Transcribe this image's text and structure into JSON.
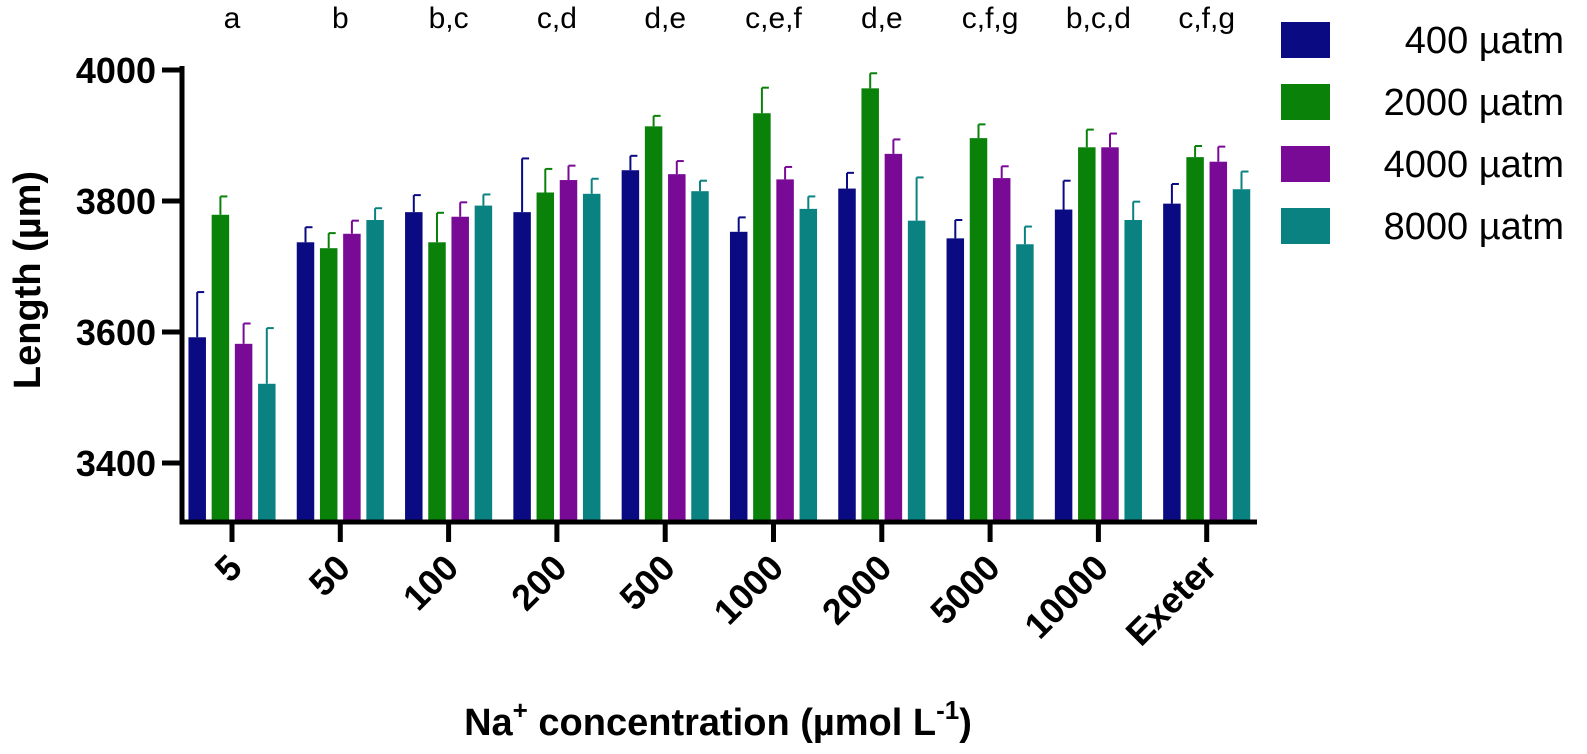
{
  "chart_data": {
    "type": "bar",
    "categories": [
      "5",
      "50",
      "100",
      "200",
      "500",
      "1000",
      "2000",
      "5000",
      "10000",
      "Exeter"
    ],
    "significance_letters": [
      "a",
      "b",
      "b,c",
      "c,d",
      "d,e",
      "c,e,f",
      "d,e",
      "c,f,g",
      "b,c,d",
      "c,f,g"
    ],
    "series": [
      {
        "name": "400 µatm",
        "color": "#0a0a82",
        "values": [
          3592,
          3737,
          3783,
          3783,
          3847,
          3753,
          3819,
          3743,
          3787,
          3796
        ],
        "errors": [
          69,
          23,
          26,
          82,
          22,
          22,
          24,
          28,
          44,
          30
        ]
      },
      {
        "name": "2000 µatm",
        "color": "#0a820a",
        "values": [
          3779,
          3728,
          3737,
          3813,
          3914,
          3934,
          3972,
          3896,
          3882,
          3867
        ],
        "errors": [
          28,
          23,
          45,
          36,
          16,
          39,
          23,
          21,
          27,
          17
        ]
      },
      {
        "name": "4000 µatm",
        "color": "#780a96",
        "values": [
          3582,
          3750,
          3776,
          3832,
          3841,
          3833,
          3872,
          3835,
          3882,
          3860
        ],
        "errors": [
          31,
          20,
          22,
          22,
          20,
          19,
          22,
          18,
          21,
          23
        ]
      },
      {
        "name": "8000 µatm",
        "color": "#0a8282",
        "values": [
          3521,
          3771,
          3793,
          3811,
          3815,
          3788,
          3770,
          3734,
          3771,
          3818
        ],
        "errors": [
          85,
          18,
          17,
          23,
          16,
          19,
          66,
          27,
          28,
          27
        ]
      }
    ],
    "ylim": [
      3310,
      4000
    ],
    "yticks": [
      "3400",
      "3600",
      "3800",
      "4000"
    ],
    "ylabel": "Length (µm)",
    "xlabel": {
      "main": "Na",
      "superscript": "+",
      "middle": " concentration (µmol L",
      "exponent": "-1",
      "end": ")"
    },
    "legend_position": "top-right",
    "grid": false
  }
}
